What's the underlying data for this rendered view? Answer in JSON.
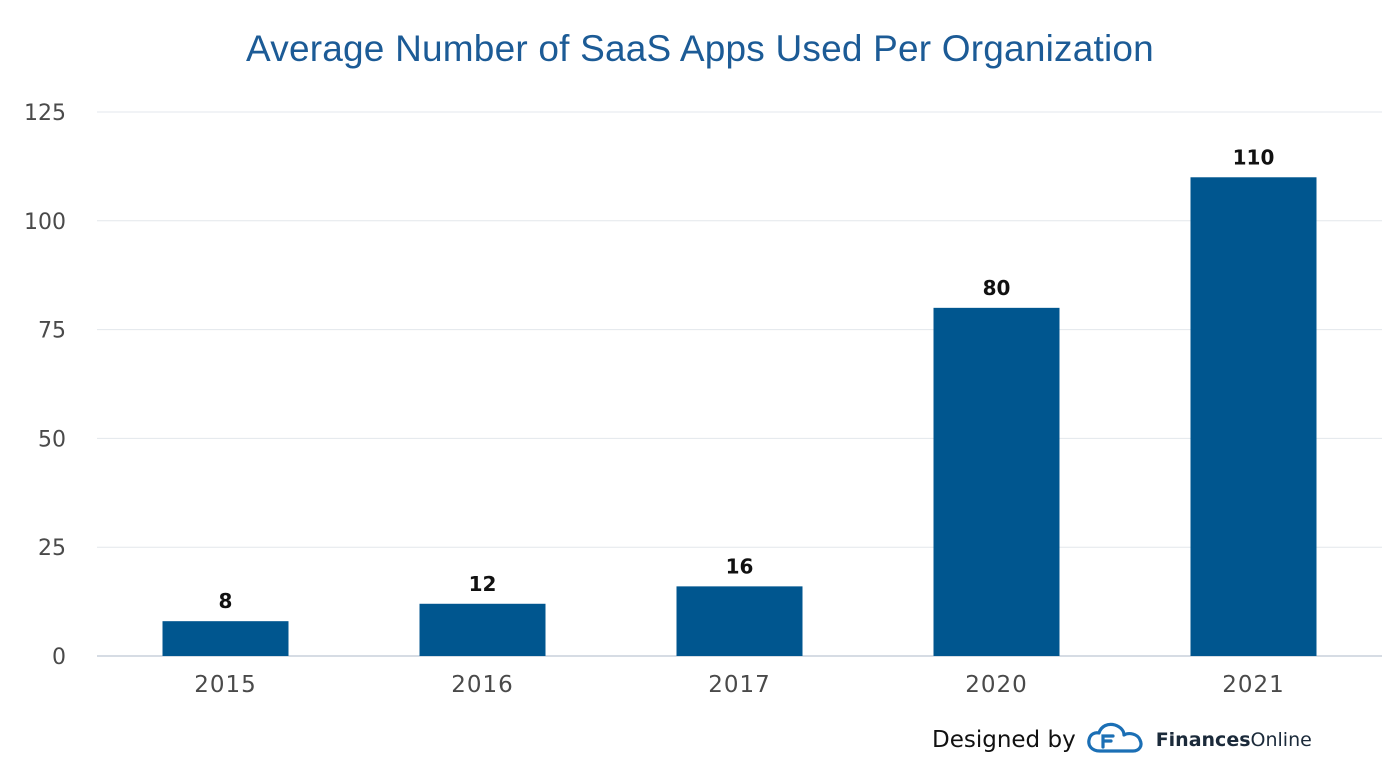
{
  "chart_data": {
    "type": "bar",
    "title": "Average Number of SaaS Apps Used Per Organization",
    "categories": [
      "2015",
      "2016",
      "2017",
      "2020",
      "2021"
    ],
    "values": [
      8,
      12,
      16,
      80,
      110
    ],
    "data_labels": [
      "8",
      "12",
      "16",
      "80",
      "110"
    ],
    "ylim": [
      0,
      125
    ],
    "yticks": [
      0,
      25,
      50,
      75,
      100,
      125
    ],
    "xlabel": "",
    "ylabel": "",
    "grid": true,
    "legend": "none",
    "bar_color": "#00568f"
  },
  "credit": {
    "designed_by": "Designed by",
    "brand_bold": "Finances",
    "brand_regular": "Online",
    "brand_color": "#1b6fb5"
  }
}
